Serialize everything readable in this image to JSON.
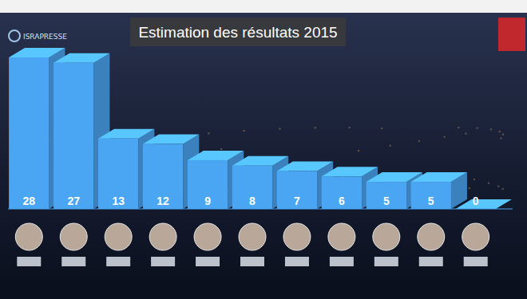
{
  "chart_data": {
    "type": "bar",
    "title": "Estimation des résultats 2015",
    "annotations": [
      "ISRAPRESSE"
    ],
    "categories": [
      null,
      null,
      null,
      null,
      null,
      null,
      null,
      null,
      null,
      null,
      null
    ],
    "values": [
      28,
      27,
      13,
      12,
      9,
      8,
      7,
      6,
      5,
      5,
      0
    ],
    "color": "#4aa6f2",
    "ylim": [
      0,
      28
    ],
    "tick_labels": false,
    "data_labels": true,
    "grid": false
  }
}
